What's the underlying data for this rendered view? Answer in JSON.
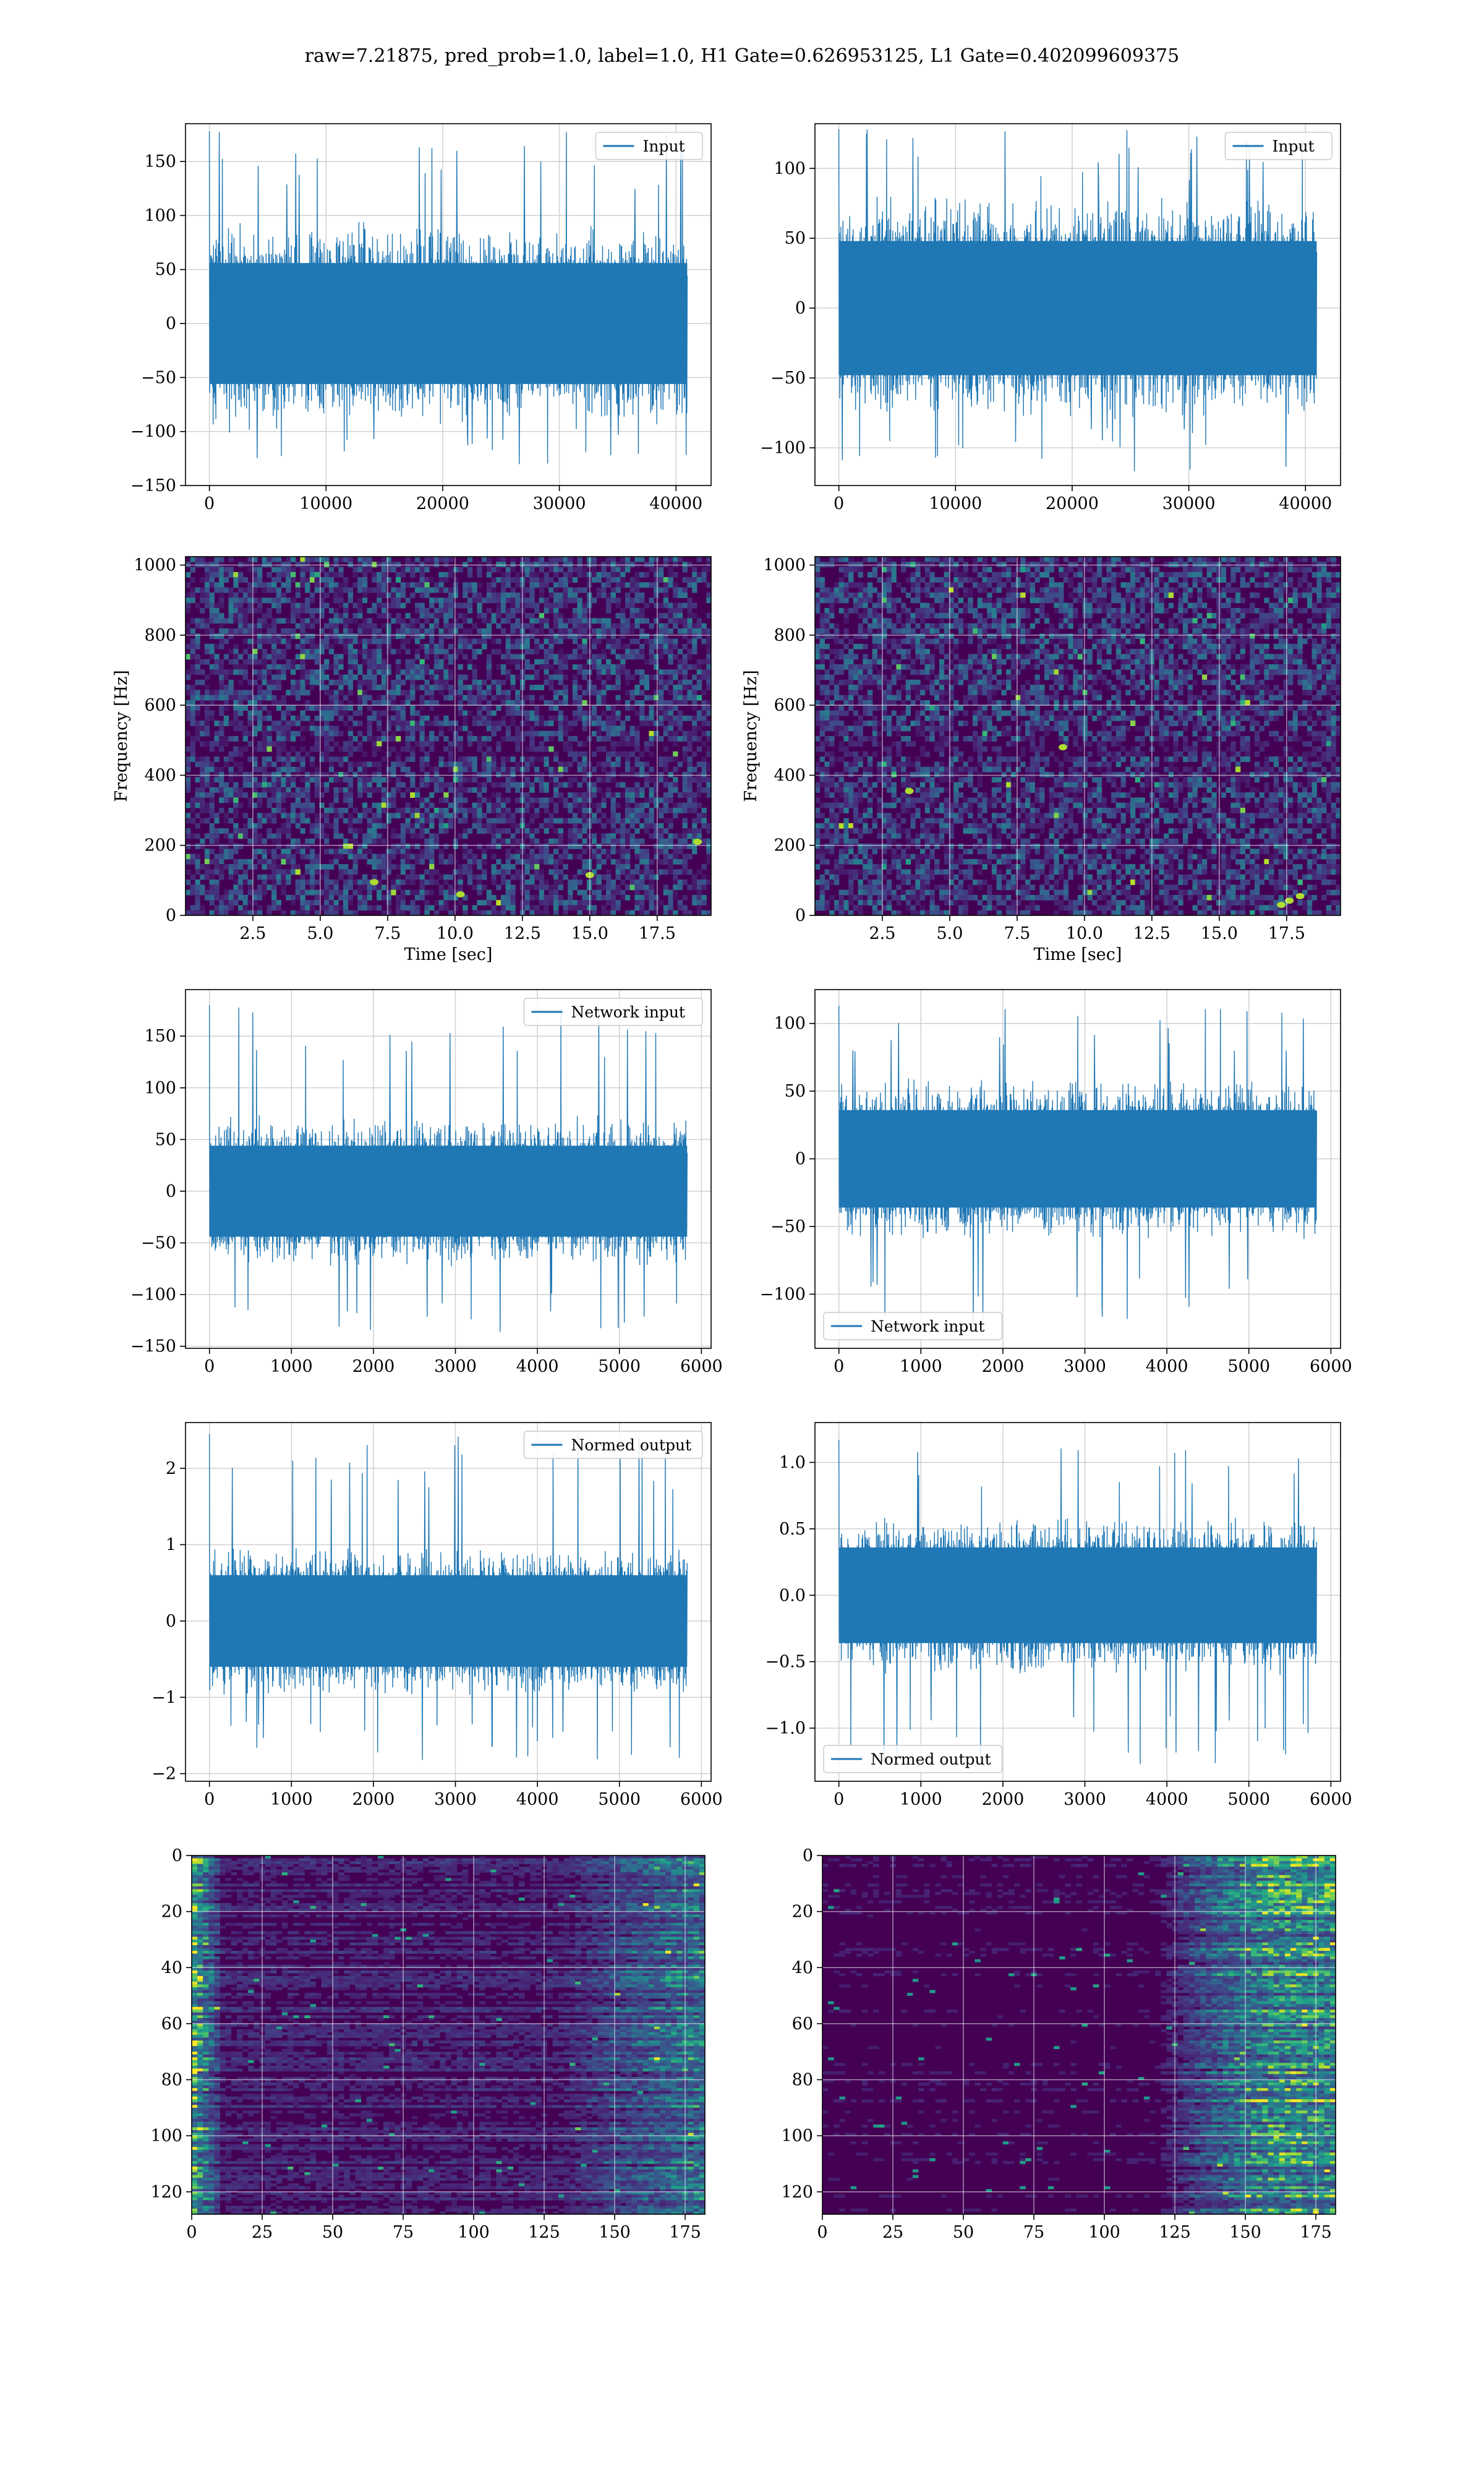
{
  "figure": {
    "suptitle": "raw=7.21875, pred_prob=1.0, label=1.0, H1 Gate=0.626953125, L1 Gate=0.402099609375"
  },
  "colors": {
    "line": "#1f77b4",
    "grid": "#d0d0d0",
    "viridis_dark": "#440154",
    "viridis_mid": "#21918c",
    "viridis_bright": "#fde725"
  },
  "chart_data": [
    {
      "id": "h1-input",
      "type": "line",
      "legend": "Input",
      "legend_loc": "upper-right",
      "xlim": [
        -2048,
        43008
      ],
      "ylim": [
        -150,
        185
      ],
      "xticks": [
        0,
        10000,
        20000,
        30000,
        40000
      ],
      "yticks": [
        -150,
        -100,
        -50,
        0,
        50,
        100,
        150
      ],
      "xlabel": "",
      "ylabel": "",
      "grid": true,
      "series": [
        {
          "x_range": [
            0,
            40960
          ],
          "y_band": [
            -70,
            70
          ],
          "y_peaks": [
            -133,
            178
          ]
        }
      ]
    },
    {
      "id": "l1-input",
      "type": "line",
      "legend": "Input",
      "legend_loc": "upper-right",
      "xlim": [
        -2048,
        43008
      ],
      "ylim": [
        -127,
        132
      ],
      "xticks": [
        0,
        10000,
        20000,
        30000,
        40000
      ],
      "yticks": [
        -100,
        -50,
        0,
        50,
        100
      ],
      "xlabel": "",
      "ylabel": "",
      "grid": true,
      "series": [
        {
          "x_range": [
            0,
            40960
          ],
          "y_band": [
            -60,
            60
          ],
          "y_peaks": [
            -118,
            128
          ]
        }
      ]
    },
    {
      "id": "h1-spectrogram",
      "type": "heatmap",
      "colormap": "viridis",
      "xlim": [
        0,
        19.5
      ],
      "ylim": [
        0,
        1024
      ],
      "xticks": [
        2.5,
        5.0,
        7.5,
        10.0,
        12.5,
        15.0,
        17.5
      ],
      "yticks": [
        0,
        200,
        400,
        600,
        800,
        1000
      ],
      "xlabel": "Time [sec]",
      "ylabel": "Frequency [Hz]",
      "grid": true
    },
    {
      "id": "l1-spectrogram",
      "type": "heatmap",
      "colormap": "viridis",
      "xlim": [
        0,
        19.5
      ],
      "ylim": [
        0,
        1024
      ],
      "xticks": [
        2.5,
        5.0,
        7.5,
        10.0,
        12.5,
        15.0,
        17.5
      ],
      "yticks": [
        0,
        200,
        400,
        600,
        800,
        1000
      ],
      "xlabel": "Time [sec]",
      "ylabel": "Frequency [Hz]",
      "grid": true
    },
    {
      "id": "h1-network-input",
      "type": "line",
      "legend": "Network input",
      "legend_loc": "upper-right",
      "xlim": [
        -292,
        6118
      ],
      "ylim": [
        -152,
        195
      ],
      "xticks": [
        0,
        1000,
        2000,
        3000,
        4000,
        5000,
        6000
      ],
      "yticks": [
        -150,
        -100,
        -50,
        0,
        50,
        100,
        150
      ],
      "xlabel": "",
      "ylabel": "",
      "grid": true,
      "series": [
        {
          "x_range": [
            0,
            5826
          ],
          "y_band": [
            -55,
            55
          ],
          "y_peaks": [
            -137,
            180
          ]
        }
      ]
    },
    {
      "id": "l1-network-input",
      "type": "line",
      "legend": "Network input",
      "legend_loc": "lower-left",
      "xlim": [
        -292,
        6118
      ],
      "ylim": [
        -140,
        125
      ],
      "xticks": [
        0,
        1000,
        2000,
        3000,
        4000,
        5000,
        6000
      ],
      "yticks": [
        -100,
        -50,
        0,
        50,
        100
      ],
      "xlabel": "",
      "ylabel": "",
      "grid": true,
      "series": [
        {
          "x_range": [
            0,
            5826
          ],
          "y_band": [
            -45,
            45
          ],
          "y_peaks": [
            -125,
            113
          ]
        }
      ]
    },
    {
      "id": "h1-normed-output",
      "type": "line",
      "legend": "Normed output",
      "legend_loc": "upper-right",
      "xlim": [
        -292,
        6118
      ],
      "ylim": [
        -2.1,
        2.6
      ],
      "xticks": [
        0,
        1000,
        2000,
        3000,
        4000,
        5000,
        6000
      ],
      "yticks": [
        -2,
        -1,
        0,
        1,
        2
      ],
      "xlabel": "",
      "ylabel": "",
      "grid": true,
      "series": [
        {
          "x_range": [
            0,
            5826
          ],
          "y_band": [
            -0.75,
            0.75
          ],
          "y_peaks": [
            -1.85,
            2.45
          ]
        }
      ]
    },
    {
      "id": "l1-normed-output",
      "type": "line",
      "legend": "Normed output",
      "legend_loc": "lower-left",
      "xlim": [
        -292,
        6118
      ],
      "ylim": [
        -1.4,
        1.3
      ],
      "xticks": [
        0,
        1000,
        2000,
        3000,
        4000,
        5000,
        6000
      ],
      "yticks": [
        -1.0,
        -0.5,
        0.0,
        0.5,
        1.0
      ],
      "xlabel": "",
      "ylabel": "",
      "grid": true,
      "series": [
        {
          "x_range": [
            0,
            5826
          ],
          "y_band": [
            -0.45,
            0.45
          ],
          "y_peaks": [
            -1.28,
            1.17
          ]
        }
      ]
    },
    {
      "id": "h1-feature-map",
      "type": "heatmap",
      "colormap": "viridis",
      "xlim": [
        0,
        182
      ],
      "ylim": [
        128,
        0
      ],
      "xticks": [
        0,
        25,
        50,
        75,
        100,
        125,
        150,
        175
      ],
      "yticks": [
        0,
        20,
        40,
        60,
        80,
        100,
        120
      ],
      "xlabel": "",
      "ylabel": "",
      "grid": true
    },
    {
      "id": "l1-feature-map",
      "type": "heatmap",
      "colormap": "viridis",
      "xlim": [
        0,
        182
      ],
      "ylim": [
        128,
        0
      ],
      "xticks": [
        0,
        25,
        50,
        75,
        100,
        125,
        150,
        175
      ],
      "yticks": [
        0,
        20,
        40,
        60,
        80,
        100,
        120
      ],
      "xlabel": "",
      "ylabel": "",
      "grid": true
    }
  ]
}
